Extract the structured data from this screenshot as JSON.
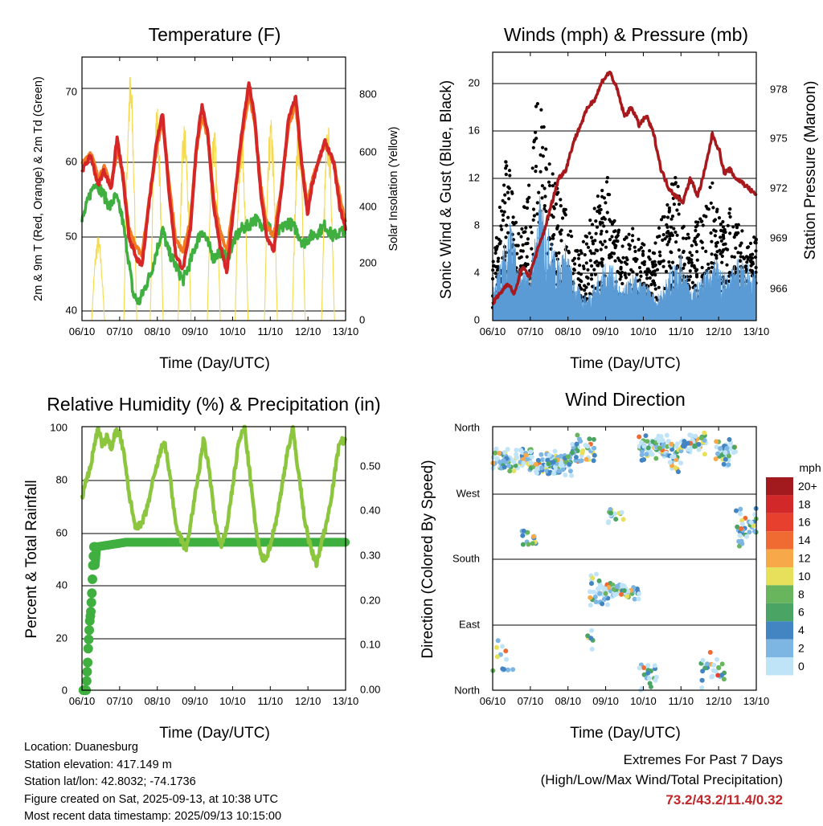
{
  "x_ticks": [
    "06/10",
    "07/10",
    "08/10",
    "09/10",
    "10/10",
    "11/10",
    "12/10",
    "13/10"
  ],
  "x_label": "Time (Day/UTC)",
  "charts": {
    "temperature": {
      "title": "Temperature (F)",
      "ylabel_left": "2m & 9m T (Red, Orange) & 2m Td (Green)",
      "ylabel_right": "Solar Insolation (Yellow)",
      "left_ticks": [
        "40",
        "50",
        "60",
        "70"
      ],
      "right_ticks": [
        "0",
        "200",
        "400",
        "600",
        "800"
      ]
    },
    "winds": {
      "title": "Winds (mph) & Pressure (mb)",
      "ylabel_left": "Sonic Wind & Gust (Blue, Black)",
      "ylabel_right": "Station Pressure (Maroon)",
      "left_ticks": [
        "0",
        "4",
        "8",
        "12",
        "16",
        "20"
      ],
      "right_ticks": [
        "966",
        "969",
        "972",
        "975",
        "978"
      ]
    },
    "humidity": {
      "title": "Relative Humidity (%) & Precipitation (in)",
      "ylabel_left": "Percent & Total Rainfall",
      "left_ticks": [
        "0",
        "20",
        "40",
        "60",
        "80",
        "100"
      ],
      "right_ticks": [
        "0.00",
        "0.10",
        "0.20",
        "0.30",
        "0.40",
        "0.50"
      ]
    },
    "direction": {
      "title": "Wind Direction",
      "ylabel_left": "Direction (Colored By Speed)",
      "dir_ticks": [
        "North",
        "East",
        "South",
        "West",
        "North"
      ],
      "legend_title": "mph",
      "legend_labels": [
        "20+",
        "18",
        "16",
        "14",
        "12",
        "10",
        "8",
        "6",
        "4",
        "2",
        "0"
      ],
      "legend_colors": [
        "#a31a1e",
        "#d3282a",
        "#e8402e",
        "#f06b31",
        "#f7a94a",
        "#e6e05a",
        "#69b55e",
        "#4aa565",
        "#4285c2",
        "#7db6e3",
        "#bfe4f7"
      ]
    }
  },
  "footer": {
    "location": "Location: Duanesburg",
    "elevation": "Station elevation: 417.149 m",
    "latlon": "Station lat/lon: 42.8032; -74.1736",
    "created": "Figure created on Sat, 2025-09-13, at 10:38 UTC",
    "recent": "Most recent data timestamp: 2025/09/13 10:15:00"
  },
  "extremes": {
    "line1": "Extremes For Past 7 Days",
    "line2": "(High/Low/Max Wind/Total Precipitation)",
    "values": "73.2/43.2/11.4/0.32"
  },
  "chart_data": [
    {
      "type": "line",
      "title": "Temperature (F)",
      "x": [
        "06/10",
        "07/10",
        "08/10",
        "09/10",
        "10/10",
        "11/10",
        "12/10",
        "13/10"
      ],
      "ylim": [
        38.5,
        74.5
      ],
      "y2lim": [
        0,
        920
      ],
      "series": [
        {
          "name": "2m T",
          "color": "#d62728",
          "axis": "left",
          "values": [
            [
              0,
              59
            ],
            [
              0.3,
              61
            ],
            [
              0.55,
              57
            ],
            [
              0.75,
              59
            ],
            [
              1.0,
              56.5
            ],
            [
              1.2,
              63.5
            ],
            [
              1.4,
              58
            ],
            [
              1.6,
              50
            ],
            [
              1.85,
              47
            ],
            [
              2.05,
              46
            ],
            [
              2.3,
              55
            ],
            [
              2.55,
              63
            ],
            [
              2.75,
              67
            ],
            [
              2.95,
              57
            ],
            [
              3.2,
              47.5
            ],
            [
              3.45,
              45.5
            ],
            [
              3.7,
              51
            ],
            [
              3.9,
              62
            ],
            [
              4.1,
              68
            ],
            [
              4.3,
              64
            ],
            [
              4.5,
              54
            ],
            [
              4.7,
              49
            ],
            [
              4.95,
              45
            ],
            [
              5.2,
              55
            ],
            [
              5.45,
              64
            ],
            [
              5.7,
              71
            ],
            [
              5.9,
              66
            ],
            [
              6.1,
              56
            ],
            [
              6.3,
              50
            ],
            [
              6.55,
              48
            ],
            [
              6.8,
              56
            ],
            [
              7.05,
              66
            ],
            [
              7.3,
              69
            ],
            [
              7.5,
              60
            ],
            [
              7.7,
              53
            ],
            [
              7.85,
              57
            ],
            [
              8.05,
              60
            ],
            [
              8.3,
              63
            ],
            [
              8.6,
              60
            ],
            [
              8.8,
              54
            ],
            [
              9.0,
              51
            ]
          ]
        },
        {
          "name": "9m T",
          "color": "#f27b21",
          "axis": "left",
          "values": [
            [
              0,
              60
            ],
            [
              0.3,
              61.5
            ],
            [
              0.55,
              58
            ],
            [
              0.75,
              59.5
            ],
            [
              1.0,
              57
            ],
            [
              1.2,
              62
            ],
            [
              1.4,
              58.5
            ],
            [
              1.6,
              51
            ],
            [
              1.85,
              48.5
            ],
            [
              2.05,
              47.5
            ],
            [
              2.3,
              55
            ],
            [
              2.55,
              62
            ],
            [
              2.75,
              66
            ],
            [
              2.95,
              58
            ],
            [
              3.2,
              49.5
            ],
            [
              3.45,
              48
            ],
            [
              3.7,
              52
            ],
            [
              3.9,
              61.5
            ],
            [
              4.1,
              66.5
            ],
            [
              4.3,
              63.5
            ],
            [
              4.5,
              55
            ],
            [
              4.7,
              51
            ],
            [
              4.95,
              48
            ],
            [
              5.2,
              55
            ],
            [
              5.45,
              63
            ],
            [
              5.7,
              69.5
            ],
            [
              5.9,
              65.5
            ],
            [
              6.1,
              57
            ],
            [
              6.3,
              51.5
            ],
            [
              6.55,
              50
            ],
            [
              6.8,
              56.5
            ],
            [
              7.05,
              65
            ],
            [
              7.3,
              68
            ],
            [
              7.5,
              60
            ],
            [
              7.7,
              54.5
            ],
            [
              7.85,
              57.5
            ],
            [
              8.05,
              60
            ],
            [
              8.3,
              62.5
            ],
            [
              8.6,
              60
            ],
            [
              8.8,
              55.5
            ],
            [
              9.0,
              52
            ]
          ]
        },
        {
          "name": "2m Td",
          "color": "#3fb03f",
          "axis": "left",
          "values": [
            [
              0,
              52
            ],
            [
              0.25,
              55.5
            ],
            [
              0.45,
              57.5
            ],
            [
              0.7,
              56
            ],
            [
              0.95,
              54
            ],
            [
              1.15,
              55.5
            ],
            [
              1.35,
              53
            ],
            [
              1.55,
              48
            ],
            [
              1.75,
              42
            ],
            [
              1.95,
              41
            ],
            [
              2.15,
              43
            ],
            [
              2.35,
              45
            ],
            [
              2.55,
              48
            ],
            [
              2.75,
              51
            ],
            [
              2.95,
              48
            ],
            [
              3.2,
              46
            ],
            [
              3.45,
              44
            ],
            [
              3.7,
              46.5
            ],
            [
              3.9,
              49
            ],
            [
              4.1,
              51
            ],
            [
              4.3,
              49
            ],
            [
              4.5,
              47
            ],
            [
              4.7,
              48
            ],
            [
              4.95,
              47
            ],
            [
              5.2,
              49.5
            ],
            [
              5.45,
              51
            ],
            [
              5.7,
              51.5
            ],
            [
              5.9,
              52.5
            ],
            [
              6.1,
              51.5
            ],
            [
              6.3,
              52
            ],
            [
              6.55,
              50
            ],
            [
              6.8,
              51
            ],
            [
              7.05,
              52
            ],
            [
              7.3,
              51
            ],
            [
              7.55,
              49
            ],
            [
              7.8,
              50
            ],
            [
              8.05,
              50.5
            ],
            [
              8.3,
              51.5
            ],
            [
              8.55,
              50
            ],
            [
              8.8,
              50.5
            ],
            [
              9.0,
              51
            ]
          ]
        }
      ]
    },
    {
      "type": "line",
      "title": "Winds (mph) & Pressure (mb)",
      "ylim": [
        0,
        22
      ],
      "y2lim": [
        964.5,
        979.6
      ],
      "series": [
        {
          "name": "Station Pressure",
          "color": "#a8191d",
          "axis": "right",
          "values": [
            [
              0,
              965.5
            ],
            [
              0.25,
              966
            ],
            [
              0.5,
              966.6
            ],
            [
              0.75,
              966
            ],
            [
              1.0,
              967.5
            ],
            [
              1.25,
              967
            ],
            [
              1.5,
              968.3
            ],
            [
              1.75,
              969.5
            ],
            [
              2.0,
              971
            ],
            [
              2.25,
              972.5
            ],
            [
              2.5,
              973
            ],
            [
              2.75,
              974.5
            ],
            [
              3.0,
              975.5
            ],
            [
              3.25,
              976.5
            ],
            [
              3.5,
              977
            ],
            [
              3.75,
              978
            ],
            [
              4.0,
              978.5
            ],
            [
              4.25,
              977.5
            ],
            [
              4.5,
              976
            ],
            [
              4.75,
              976.5
            ],
            [
              5.0,
              975.5
            ],
            [
              5.25,
              976
            ],
            [
              5.5,
              975
            ],
            [
              5.75,
              973
            ],
            [
              6.0,
              972
            ],
            [
              6.25,
              971.5
            ],
            [
              6.5,
              971.2
            ],
            [
              6.75,
              972.5
            ],
            [
              7.0,
              971.5
            ],
            [
              7.25,
              973
            ],
            [
              7.5,
              975
            ],
            [
              7.75,
              974
            ],
            [
              7.9,
              972.8
            ],
            [
              8.1,
              973
            ],
            [
              8.3,
              972.5
            ],
            [
              8.5,
              972.3
            ],
            [
              8.7,
              972
            ],
            [
              8.9,
              971.7
            ],
            [
              9.0,
              971.6
            ]
          ]
        },
        {
          "name": "Sonic Wind",
          "color": "#5b9bd5",
          "axis": "left"
        },
        {
          "name": "Gust",
          "color": "#000000",
          "axis": "left"
        }
      ]
    },
    {
      "type": "line",
      "title": "Relative Humidity (%) & Precipitation (in)",
      "ylim": [
        0,
        100
      ],
      "y2lim": [
        0,
        0.57
      ],
      "series": [
        {
          "name": "Relative Humidity",
          "color": "#8cc63f",
          "axis": "left",
          "values": [
            [
              0,
              73
            ],
            [
              0.15,
              80
            ],
            [
              0.3,
              85
            ],
            [
              0.45,
              95
            ],
            [
              0.55,
              99
            ],
            [
              0.7,
              93
            ],
            [
              0.85,
              96
            ],
            [
              1.0,
              92
            ],
            [
              1.15,
              98
            ],
            [
              1.3,
              97
            ],
            [
              1.45,
              88
            ],
            [
              1.6,
              75
            ],
            [
              1.8,
              63
            ],
            [
              2.0,
              62
            ],
            [
              2.2,
              68
            ],
            [
              2.4,
              78
            ],
            [
              2.6,
              87
            ],
            [
              2.8,
              95
            ],
            [
              3.0,
              82
            ],
            [
              3.2,
              62
            ],
            [
              3.4,
              57
            ],
            [
              3.55,
              53
            ],
            [
              3.75,
              66
            ],
            [
              3.95,
              80
            ],
            [
              4.15,
              95
            ],
            [
              4.35,
              83
            ],
            [
              4.55,
              64
            ],
            [
              4.75,
              54
            ],
            [
              4.95,
              62
            ],
            [
              5.15,
              78
            ],
            [
              5.35,
              94
            ],
            [
              5.55,
              100
            ],
            [
              5.75,
              80
            ],
            [
              5.95,
              60
            ],
            [
              6.15,
              49
            ],
            [
              6.35,
              52
            ],
            [
              6.6,
              63
            ],
            [
              6.8,
              75
            ],
            [
              7.0,
              90
            ],
            [
              7.2,
              99
            ],
            [
              7.4,
              82
            ],
            [
              7.6,
              65
            ],
            [
              7.8,
              54
            ],
            [
              8.0,
              48
            ],
            [
              8.2,
              57
            ],
            [
              8.4,
              66
            ],
            [
              8.6,
              80
            ],
            [
              8.8,
              95
            ],
            [
              9.0,
              94
            ]
          ]
        },
        {
          "name": "Total Rainfall",
          "color": "#3fb03f",
          "axis": "right",
          "values": [
            [
              0,
              0.0
            ],
            [
              0.25,
              0.0
            ],
            [
              0.3,
              0.06
            ],
            [
              0.35,
              0.13
            ],
            [
              0.4,
              0.2
            ],
            [
              0.45,
              0.27
            ],
            [
              0.5,
              0.31
            ],
            [
              1.5,
              0.32
            ],
            [
              9.0,
              0.32
            ]
          ]
        }
      ]
    },
    {
      "type": "scatter",
      "title": "Wind Direction",
      "y_categories": [
        "North",
        "East",
        "South",
        "West",
        "North"
      ],
      "ylim": [
        0,
        360
      ],
      "colorbar": {
        "title": "mph",
        "labels": [
          "20+",
          "18",
          "16",
          "14",
          "12",
          "10",
          "8",
          "6",
          "4",
          "2",
          "0"
        ]
      }
    }
  ]
}
